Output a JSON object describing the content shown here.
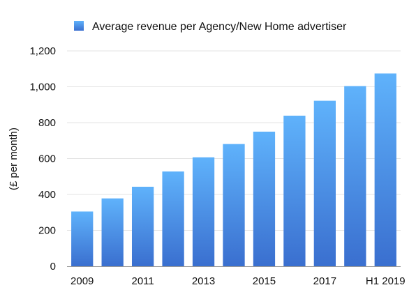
{
  "chart_data": {
    "type": "bar",
    "title": "",
    "xlabel": "",
    "ylabel": "(£ per month)",
    "ylim": [
      0,
      1200
    ],
    "yticks": [
      "0",
      "200",
      "400",
      "600",
      "800",
      "1,000",
      "1,200"
    ],
    "ytick_values": [
      0,
      200,
      400,
      600,
      800,
      1000,
      1200
    ],
    "grid": true,
    "legend_position": "top-center",
    "categories": [
      "2009",
      "2010",
      "2011",
      "2012",
      "2013",
      "2014",
      "2015",
      "2016",
      "2017",
      "2018",
      "H1 2019"
    ],
    "xtick_labels": [
      "2009",
      "",
      "2011",
      "",
      "2013",
      "",
      "2015",
      "",
      "2017",
      "",
      "H1 2019"
    ],
    "series": [
      {
        "name": "Average revenue per Agency/New Home advertiser",
        "values": [
          305,
          378,
          443,
          528,
          607,
          681,
          750,
          839,
          922,
          1004,
          1074
        ],
        "color_top": "#5fb2fb",
        "color_bottom": "#3a6fcf"
      }
    ]
  }
}
